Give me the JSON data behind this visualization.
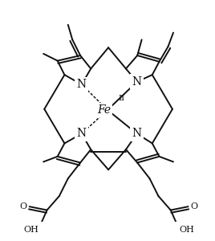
{
  "background_color": "#ffffff",
  "line_color": "#111111",
  "line_width": 1.4,
  "figsize": [
    2.68,
    3.0
  ],
  "dpi": 100,
  "xlim": [
    -1.2,
    1.2
  ],
  "ylim": [
    -1.25,
    1.05
  ]
}
